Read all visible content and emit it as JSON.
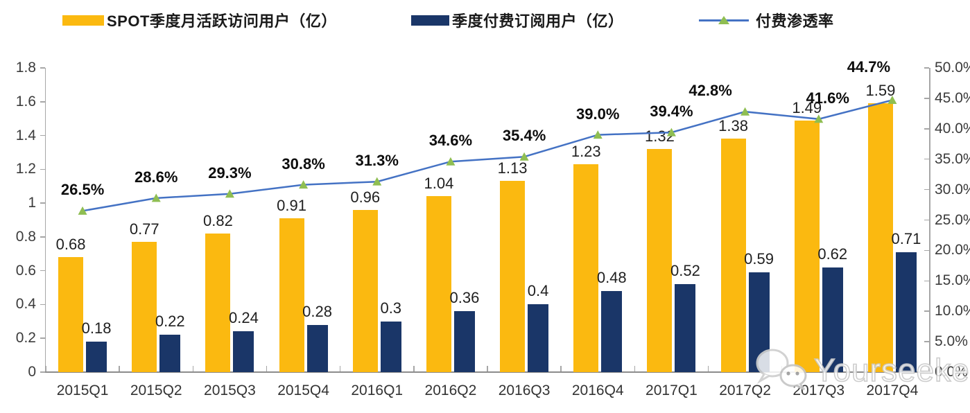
{
  "legend": [
    {
      "label": "SPOT季度月活跃访问用户（亿）",
      "type": "bar",
      "color": "#FBB910"
    },
    {
      "label": "季度付费订阅用户（亿）",
      "type": "bar",
      "color": "#1A3668"
    },
    {
      "label": "付费渗透率",
      "type": "line",
      "color": "#4472C4",
      "marker_color": "#8FBE52"
    }
  ],
  "watermark": {
    "text": "Yourseeker",
    "icon": "wechat-icon"
  },
  "chart_data": {
    "type": "combo",
    "categories": [
      "2015Q1",
      "2015Q2",
      "2015Q3",
      "2015Q4",
      "2016Q1",
      "2016Q2",
      "2016Q3",
      "2016Q4",
      "2017Q1",
      "2017Q2",
      "2017Q3",
      "2017Q4"
    ],
    "series": [
      {
        "name": "SPOT季度月活跃访问用户（亿）",
        "type": "bar",
        "axis": "left",
        "color": "#FBB910",
        "values": [
          0.68,
          0.77,
          0.82,
          0.91,
          0.96,
          1.04,
          1.13,
          1.23,
          1.32,
          1.38,
          1.49,
          1.59
        ],
        "labels": [
          "0.68",
          "0.77",
          "0.82",
          "0.91",
          "0.96",
          "1.04",
          "1.13",
          "1.23",
          "1.32",
          "1.38",
          "1.49",
          "1.59"
        ]
      },
      {
        "name": "季度付费订阅用户（亿）",
        "type": "bar",
        "axis": "left",
        "color": "#1A3668",
        "values": [
          0.18,
          0.22,
          0.24,
          0.28,
          0.3,
          0.36,
          0.4,
          0.48,
          0.52,
          0.59,
          0.62,
          0.71
        ],
        "labels": [
          "0.18",
          "0.22",
          "0.24",
          "0.28",
          "0.3",
          "0.36",
          "0.4",
          "0.48",
          "0.52",
          "0.59",
          "0.62",
          "0.71"
        ]
      },
      {
        "name": "付费渗透率",
        "type": "line",
        "axis": "right",
        "color": "#4472C4",
        "marker": "triangle",
        "marker_color": "#8FBE52",
        "values": [
          26.5,
          28.6,
          29.3,
          30.8,
          31.3,
          34.6,
          35.4,
          39.0,
          39.4,
          42.8,
          41.6,
          44.7
        ],
        "labels": [
          "26.5%",
          "28.6%",
          "29.3%",
          "30.8%",
          "31.3%",
          "34.6%",
          "35.4%",
          "39.0%",
          "39.4%",
          "42.8%",
          "41.6%",
          "44.7%"
        ]
      }
    ],
    "y_left": {
      "min": 0,
      "max": 1.8,
      "ticks": [
        "1.8",
        "1.6",
        "1.4",
        "1.2",
        "1",
        "0.8",
        "0.6",
        "0.4",
        "0.2",
        "0"
      ]
    },
    "y_right": {
      "min": 0,
      "max": 50,
      "ticks": [
        "50.0%",
        "45.0%",
        "40.0%",
        "35.0%",
        "30.0%",
        "25.0%",
        "20.0%",
        "15.0%",
        "10.0%",
        "5.0%",
        "0.0%"
      ]
    },
    "grid": false,
    "legend_position": "top"
  }
}
